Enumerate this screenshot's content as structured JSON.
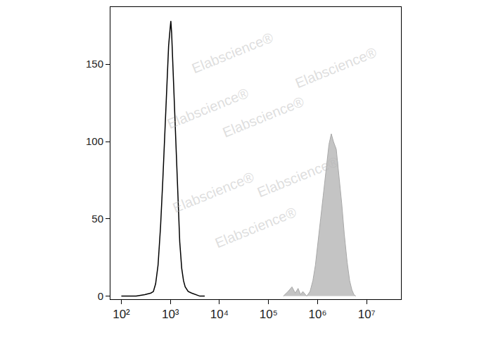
{
  "chart_data": {
    "type": "line",
    "log": "x",
    "grid": false,
    "xlim": [
      60,
      50000000
    ],
    "xticks": [
      {
        "value": 100,
        "label": "10²"
      },
      {
        "value": 1000,
        "label": "10³"
      },
      {
        "value": 10000,
        "label": "10⁴"
      },
      {
        "value": 100000,
        "label": "10⁵"
      },
      {
        "value": 1000000,
        "label": "10⁶"
      },
      {
        "value": 10000000,
        "label": "10⁷"
      }
    ],
    "ylim": [
      -2,
      187
    ],
    "yticks": [
      0,
      50,
      100,
      150
    ],
    "watermark": "Elabscience®",
    "series": [
      {
        "type": "line",
        "color": "#000000",
        "x": [
          100,
          200,
          300,
          400,
          450,
          500,
          560,
          630,
          700,
          780,
          850,
          920,
          980,
          1020,
          1060,
          1120,
          1200,
          1300,
          1420,
          1550,
          1700,
          1850,
          2000,
          2300,
          2700,
          3200,
          4000,
          5000
        ],
        "values": [
          0,
          0,
          1,
          2,
          3,
          8,
          20,
          45,
          75,
          110,
          140,
          162,
          172,
          178,
          170,
          150,
          120,
          90,
          60,
          35,
          18,
          10,
          6,
          3,
          2,
          1,
          0,
          0
        ]
      },
      {
        "type": "area",
        "color": "#c4c4c4",
        "x": [
          200000,
          250000,
          300000,
          350000,
          400000,
          450000,
          500000,
          600000,
          700000,
          800000,
          900000,
          1000000,
          1150000,
          1300000,
          1500000,
          1700000,
          1900000,
          2100000,
          2400000,
          2700000,
          3100000,
          3500000,
          4000000,
          4500000,
          5000000,
          5500000,
          6000000
        ],
        "values": [
          0,
          3,
          6,
          2,
          5,
          1,
          3,
          0,
          3,
          10,
          20,
          32,
          50,
          65,
          82,
          98,
          105,
          100,
          95,
          80,
          60,
          40,
          22,
          10,
          4,
          1,
          0
        ]
      }
    ]
  }
}
